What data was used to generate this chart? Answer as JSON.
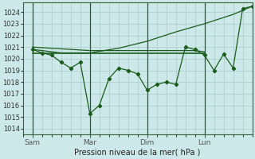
{
  "background_color": "#cce8e8",
  "grid_color": "#aacccc",
  "line_color": "#1a5c1a",
  "xlabel": "Pression niveau de la mer( hPa )",
  "ylim": [
    1013.5,
    1024.8
  ],
  "yticks": [
    1014,
    1015,
    1016,
    1017,
    1018,
    1019,
    1020,
    1021,
    1022,
    1023,
    1024
  ],
  "xlim": [
    0,
    96
  ],
  "x_ticks": [
    4,
    28,
    52,
    76
  ],
  "x_labels": [
    "Sam",
    "Mar",
    "Dim",
    "Lun"
  ],
  "vlines": [
    4,
    28,
    52,
    76
  ],
  "series_zigzag": {
    "x": [
      4,
      8,
      12,
      16,
      20,
      24,
      28,
      32,
      36,
      40,
      44,
      48,
      52,
      56,
      60,
      64,
      68,
      72,
      76,
      80,
      84,
      88,
      92,
      96
    ],
    "y": [
      1020.8,
      1020.5,
      1020.3,
      1019.7,
      1019.2,
      1019.7,
      1015.3,
      1016.0,
      1018.3,
      1019.2,
      1019.0,
      1018.7,
      1017.3,
      1017.8,
      1018.0,
      1017.8,
      1021.0,
      1020.8,
      1020.3,
      1019.0,
      1020.4,
      1019.2,
      1024.3,
      1024.5
    ]
  },
  "series_smooth": {
    "x": [
      4,
      16,
      28,
      40,
      52,
      64,
      76,
      88,
      96
    ],
    "y": [
      1020.8,
      1020.5,
      1020.5,
      1020.9,
      1021.5,
      1022.3,
      1023.0,
      1023.8,
      1024.5
    ]
  },
  "series_flat1": {
    "x": [
      4,
      28,
      52,
      64,
      68,
      72,
      76
    ],
    "y": [
      1020.5,
      1020.5,
      1020.5,
      1020.5,
      1020.5,
      1020.5,
      1020.5
    ]
  },
  "series_flat2": {
    "x": [
      4,
      28,
      40,
      52,
      56,
      60,
      64,
      68,
      72,
      76
    ],
    "y": [
      1021.0,
      1020.7,
      1020.7,
      1020.7,
      1020.7,
      1020.7,
      1020.7,
      1020.7,
      1020.7,
      1020.6
    ]
  }
}
